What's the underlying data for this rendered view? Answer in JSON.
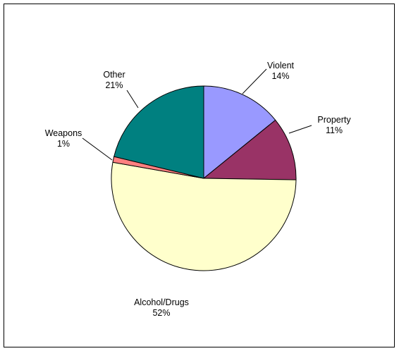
{
  "chart_data": {
    "type": "pie",
    "title": "",
    "slices": [
      {
        "label": "Violent",
        "pct_label": "14%",
        "value": 14,
        "color": "#9999ff"
      },
      {
        "label": "Property",
        "pct_label": "11%",
        "value": 11,
        "color": "#993366"
      },
      {
        "label": "Alcohol/Drugs",
        "pct_label": "52%",
        "value": 52,
        "color": "#ffffcc"
      },
      {
        "label": "Weapons",
        "pct_label": "1%",
        "value": 1,
        "color": "#ff8080"
      },
      {
        "label": "Other",
        "pct_label": "21%",
        "value": 21,
        "color": "#008080"
      }
    ],
    "legend": "none"
  }
}
